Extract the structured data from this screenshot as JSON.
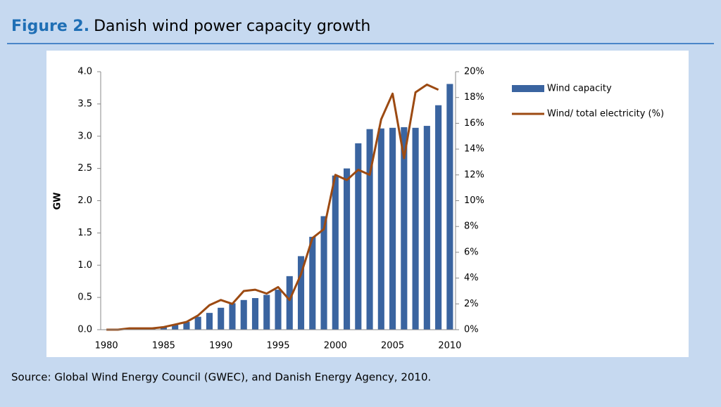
{
  "chart_data": {
    "type": "bar_line",
    "figure_label": "Figure 2.",
    "title": "Danish wind power capacity growth",
    "source": "Source: Global Wind Energy Council (GWEC), and Danish Energy Agency, 2010.",
    "ylabel": "GW",
    "categories": [
      "1980",
      null,
      null,
      null,
      null,
      "1985",
      null,
      null,
      null,
      null,
      "1990",
      null,
      null,
      null,
      null,
      "1995",
      null,
      null,
      null,
      null,
      "2000",
      null,
      null,
      null,
      null,
      "2005",
      null,
      null,
      null,
      null,
      "2010"
    ],
    "series": [
      {
        "name": "Wind capacity",
        "type": "bar",
        "axis": "y",
        "color": "#3a64a0",
        "values": [
          0.003,
          0.007,
          0.01,
          0.015,
          0.02,
          0.05,
          0.08,
          0.12,
          0.2,
          0.26,
          0.34,
          0.41,
          0.46,
          0.49,
          0.54,
          0.62,
          0.83,
          1.14,
          1.44,
          1.76,
          2.39,
          2.5,
          2.89,
          3.11,
          3.12,
          3.13,
          3.14,
          3.13,
          3.16,
          3.48,
          3.81
        ]
      },
      {
        "name": "Wind/ total electricity (%)",
        "type": "line",
        "axis": "y2",
        "color": "#9c4a12",
        "values": [
          0,
          0,
          0.1,
          0.1,
          0.1,
          0.2,
          0.4,
          0.6,
          1.1,
          1.9,
          2.3,
          2.0,
          3.0,
          3.1,
          2.8,
          3.3,
          2.3,
          4.3,
          7.1,
          7.8,
          12.0,
          11.6,
          12.4,
          12.0,
          16.3,
          18.3,
          13.3,
          18.4,
          19.0,
          18.6,
          null
        ]
      }
    ],
    "ylim": [
      0,
      4
    ],
    "yticks": [
      {
        "value": 0,
        "label": "0.0"
      },
      {
        "value": 0.5,
        "label": "0.5"
      },
      {
        "value": 1,
        "label": "1.0"
      },
      {
        "value": 1.5,
        "label": "1.5"
      },
      {
        "value": 2,
        "label": "2.0"
      },
      {
        "value": 2.5,
        "label": "2.5"
      },
      {
        "value": 3,
        "label": "3.0"
      },
      {
        "value": 3.5,
        "label": "3.5"
      },
      {
        "value": 4,
        "label": "4.0"
      }
    ],
    "y2lim": [
      0,
      20
    ],
    "y2ticks": [
      {
        "value": 0,
        "label": "0%"
      },
      {
        "value": 2,
        "label": "2%"
      },
      {
        "value": 4,
        "label": "4%"
      },
      {
        "value": 6,
        "label": "6%"
      },
      {
        "value": 8,
        "label": "8%"
      },
      {
        "value": 10,
        "label": "10%"
      },
      {
        "value": 12,
        "label": "12%"
      },
      {
        "value": 14,
        "label": "14%"
      },
      {
        "value": 16,
        "label": "16%"
      },
      {
        "value": 18,
        "label": "18%"
      },
      {
        "value": 20,
        "label": "20%"
      }
    ],
    "grid": false,
    "legend": "right"
  }
}
